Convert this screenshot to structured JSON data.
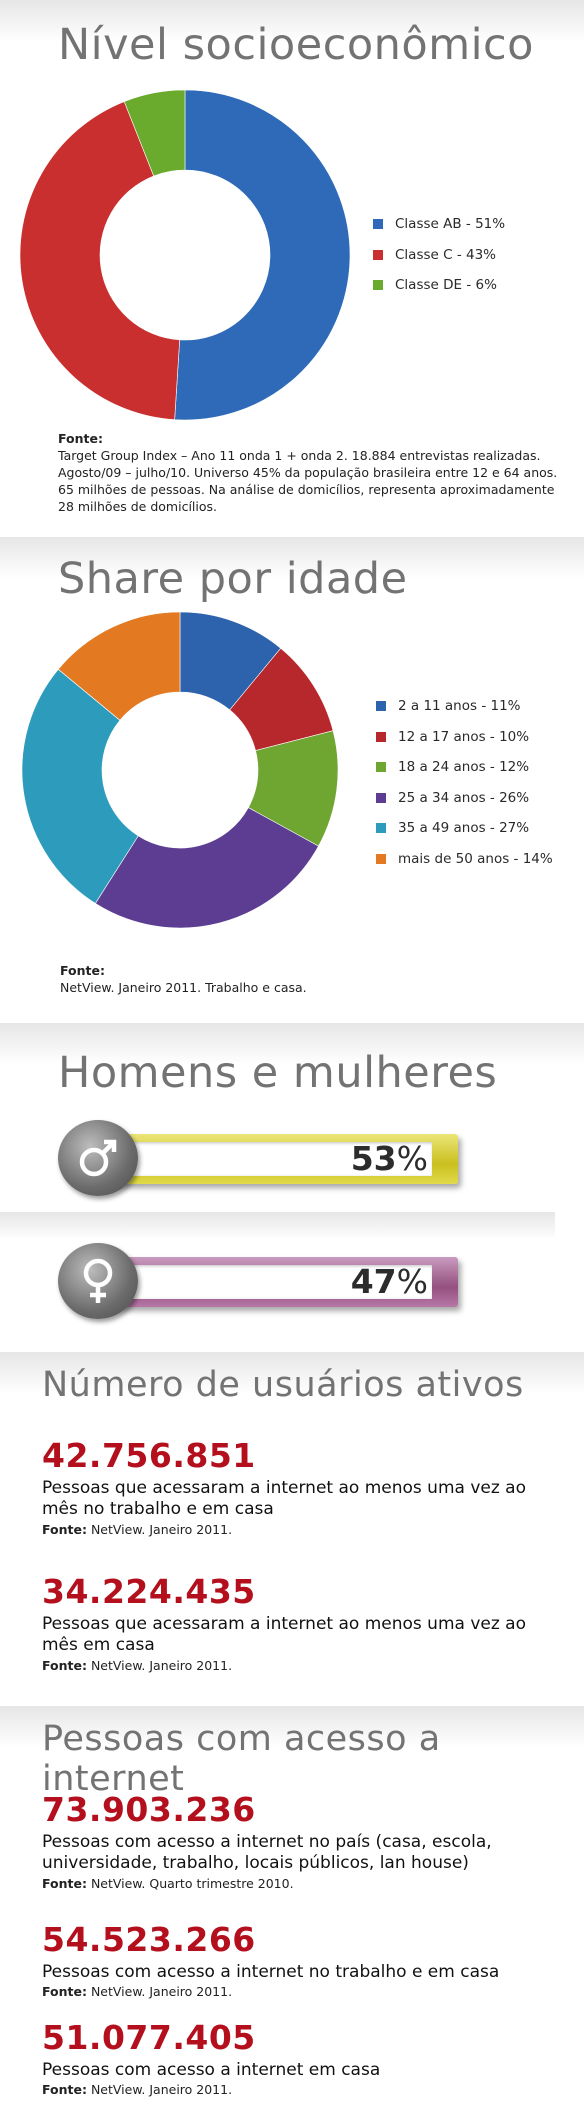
{
  "socio": {
    "title": "Nível socioeconômico",
    "fonte_label": "Fonte:",
    "fonte_text": "Target Group Index – Ano 11 onda 1 + onda 2. 18.884 entrevistas realizadas. Agosto/09 – julho/10. Universo 45% da população brasileira entre 12 e 64 anos. 65 milhões de pessoas. Na análise de domicílios, representa aproximadamente 28 milhões de domicílios.",
    "legend": [
      "Classe AB - 51%",
      "Classe C - 43%",
      "Classe DE - 6%"
    ]
  },
  "idade": {
    "title": "Share por idade",
    "fonte_label": "Fonte:",
    "fonte_text": "NetView. Janeiro 2011. Trabalho e casa.",
    "legend": [
      "2 a 11 anos - 11%",
      "12 a 17 anos - 10%",
      "18 a 24 anos - 12%",
      "25 a 34 anos - 26%",
      "35 a 49 anos - 27%",
      "mais de 50 anos - 14%"
    ]
  },
  "genero": {
    "title": "Homens e mulheres",
    "homens_value": "53",
    "mulheres_value": "47",
    "percent_symbol": "%"
  },
  "usuarios": {
    "title": "Número de usuários ativos",
    "items": [
      {
        "number": "42.756.851",
        "desc": "Pessoas que acessaram a internet ao menos uma vez ao mês no trabalho e em casa",
        "src_label": "Fonte:",
        "src": " NetView. Janeiro 2011."
      },
      {
        "number": "34.224.435",
        "desc": "Pessoas que acessaram a internet ao menos uma vez ao mês em casa",
        "src_label": "Fonte:",
        "src": " NetView. Janeiro 2011."
      }
    ]
  },
  "acesso": {
    "title": "Pessoas com acesso a internet",
    "items": [
      {
        "number": "73.903.236",
        "desc": "Pessoas com acesso a internet no país (casa, escola, universidade, trabalho, locais públicos, lan house)",
        "src_label": "Fonte:",
        "src": " NetView. Quarto trimestre 2010."
      },
      {
        "number": "54.523.266",
        "desc": "Pessoas com acesso a internet no trabalho e em casa",
        "src_label": "Fonte:",
        "src": " NetView. Janeiro 2011."
      },
      {
        "number": "51.077.405",
        "desc": "Pessoas com acesso a internet em casa",
        "src_label": "Fonte:",
        "src": " NetView. Janeiro 2011."
      }
    ]
  },
  "colors": {
    "ab": "#2e6ab7",
    "c": "#c92f2f",
    "de": "#6aab2e",
    "idade": [
      "#2d62ac",
      "#b7282d",
      "#6fa531",
      "#5c3d91",
      "#2d9cbc",
      "#e37a22"
    ],
    "homens_bar": "#d9d13a",
    "mulheres_bar": "#a8659a",
    "number_red": "#b30f1c"
  },
  "chart_data": [
    {
      "type": "pie",
      "title": "Nível socioeconômico",
      "categories": [
        "Classe AB",
        "Classe C",
        "Classe DE"
      ],
      "values": [
        51,
        43,
        6
      ],
      "legend": "right"
    },
    {
      "type": "pie",
      "title": "Share por idade",
      "categories": [
        "2 a 11 anos",
        "12 a 17 anos",
        "18 a 24 anos",
        "25 a 34 anos",
        "35 a 49 anos",
        "mais de 50 anos"
      ],
      "values": [
        11,
        10,
        12,
        26,
        27,
        14
      ],
      "legend": "right"
    },
    {
      "type": "bar",
      "title": "Homens e mulheres",
      "categories": [
        "Homens",
        "Mulheres"
      ],
      "values": [
        53,
        47
      ]
    }
  ]
}
